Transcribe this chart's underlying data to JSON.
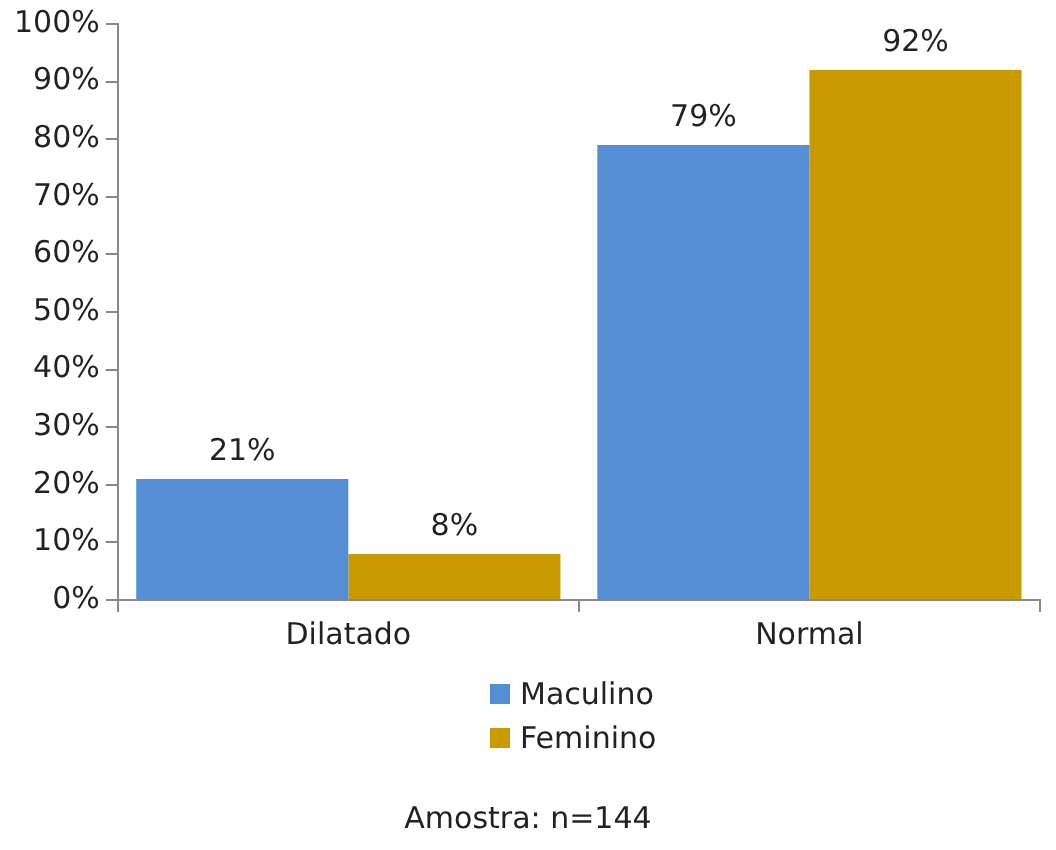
{
  "chart_data": {
    "type": "bar",
    "categories": [
      "Dilatado",
      "Normal"
    ],
    "series": [
      {
        "name": "Maculino",
        "color": "#558ed5",
        "values": [
          21,
          79
        ],
        "value_labels": [
          "21%",
          "79%"
        ]
      },
      {
        "name": "Feminino",
        "color": "#c99a00",
        "values": [
          8,
          92
        ],
        "value_labels": [
          "8%",
          "92%"
        ]
      }
    ],
    "ylim": [
      0,
      100
    ],
    "yticks": [
      {
        "value": 0,
        "label": "0%"
      },
      {
        "value": 10,
        "label": "10%"
      },
      {
        "value": 20,
        "label": "20%"
      },
      {
        "value": 30,
        "label": "30%"
      },
      {
        "value": 40,
        "label": "40%"
      },
      {
        "value": 50,
        "label": "50%"
      },
      {
        "value": 60,
        "label": "60%"
      },
      {
        "value": 70,
        "label": "70%"
      },
      {
        "value": 80,
        "label": "80%"
      },
      {
        "value": 90,
        "label": "90%"
      },
      {
        "value": 100,
        "label": "100%"
      }
    ],
    "grid": false,
    "legend": "bottom",
    "annotations": [
      "Amostra: n=144"
    ]
  }
}
